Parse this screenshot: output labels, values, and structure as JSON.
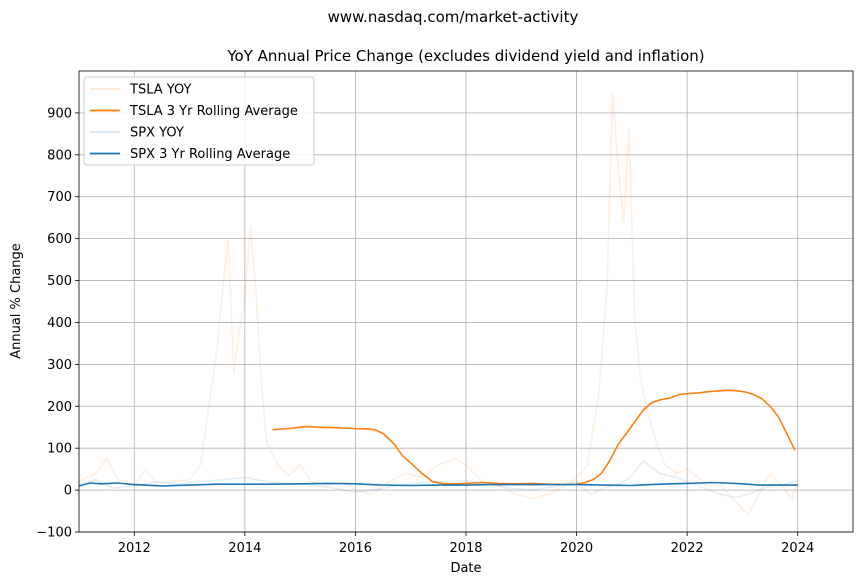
{
  "colors": {
    "tsla": "#ff7f0e",
    "spx": "#1f77b4",
    "grid": "#b0b0b0",
    "legend_border": "#cccccc"
  },
  "chart_data": {
    "type": "line",
    "suptitle": "www.nasdaq.com/market-activity",
    "title": "YoY Annual Price Change (excludes dividend yield and inflation)",
    "xlabel": "Date",
    "ylabel": "Annual % Change",
    "xlim": [
      2011.0,
      2025.0
    ],
    "ylim": [
      -100,
      1000
    ],
    "x_ticks": [
      2012,
      2014,
      2016,
      2018,
      2020,
      2022,
      2024
    ],
    "y_ticks": [
      -100,
      0,
      100,
      200,
      300,
      400,
      500,
      600,
      700,
      800,
      900
    ],
    "grid": true,
    "legend_position": "upper-left",
    "series": [
      {
        "name": "TSLA YOY",
        "color": "#ff7f0e",
        "opacity": 0.12,
        "x": [
          2011.0,
          2011.3,
          2011.5,
          2011.7,
          2012.0,
          2012.2,
          2012.4,
          2012.7,
          2013.0,
          2013.2,
          2013.35,
          2013.5,
          2013.6,
          2013.7,
          2013.8,
          2013.9,
          2014.0,
          2014.1,
          2014.2,
          2014.3,
          2014.4,
          2014.6,
          2014.8,
          2015.0,
          2015.2,
          2015.5,
          2015.8,
          2016.0,
          2016.3,
          2016.6,
          2016.9,
          2017.2,
          2017.5,
          2017.8,
          2018.0,
          2018.3,
          2018.6,
          2018.9,
          2019.2,
          2019.5,
          2019.8,
          2020.0,
          2020.2,
          2020.4,
          2020.55,
          2020.65,
          2020.75,
          2020.85,
          2020.95,
          2021.05,
          2021.15,
          2021.3,
          2021.45,
          2021.6,
          2021.8,
          2022.0,
          2022.3,
          2022.6,
          2022.9,
          2023.1,
          2023.3,
          2023.5,
          2023.7,
          2023.9,
          2024.0
        ],
        "y": [
          20,
          40,
          75,
          25,
          10,
          50,
          15,
          20,
          25,
          60,
          200,
          340,
          480,
          600,
          280,
          380,
          460,
          630,
          480,
          250,
          110,
          60,
          35,
          60,
          20,
          10,
          20,
          0,
          -10,
          20,
          40,
          30,
          60,
          75,
          60,
          20,
          10,
          -10,
          -20,
          -10,
          10,
          30,
          60,
          230,
          480,
          950,
          780,
          640,
          860,
          420,
          270,
          180,
          110,
          60,
          40,
          50,
          20,
          10,
          -30,
          -60,
          -10,
          40,
          10,
          -20,
          20
        ]
      },
      {
        "name": "TSLA 3 Yr Rolling Average",
        "color": "#ff7f0e",
        "opacity": 1,
        "x": [
          2014.5,
          2014.8,
          2015.0,
          2015.15,
          2015.3,
          2015.6,
          2015.8,
          2016.0,
          2016.2,
          2016.35,
          2016.5,
          2016.7,
          2016.85,
          2017.0,
          2017.2,
          2017.4,
          2017.6,
          2017.8,
          2018.0,
          2018.3,
          2018.6,
          2018.9,
          2019.2,
          2019.5,
          2019.8,
          2020.0,
          2020.15,
          2020.3,
          2020.45,
          2020.6,
          2020.75,
          2020.9,
          2021.05,
          2021.2,
          2021.35,
          2021.5,
          2021.7,
          2021.85,
          2022.0,
          2022.2,
          2022.4,
          2022.6,
          2022.75,
          2022.9,
          2023.05,
          2023.2,
          2023.35,
          2023.5,
          2023.65,
          2023.8,
          2023.95
        ],
        "y": [
          144,
          147,
          150,
          152,
          150,
          149,
          148,
          147,
          146,
          144,
          135,
          110,
          82,
          65,
          40,
          20,
          15,
          15,
          16,
          18,
          16,
          15,
          16,
          14,
          13,
          14,
          18,
          25,
          40,
          70,
          108,
          135,
          162,
          190,
          208,
          215,
          220,
          228,
          230,
          232,
          235,
          237,
          238,
          237,
          234,
          228,
          218,
          200,
          175,
          135,
          95
        ]
      },
      {
        "name": "SPX YOY",
        "color": "#1f77b4",
        "opacity": 0.12,
        "x": [
          2011.0,
          2011.3,
          2011.6,
          2012.0,
          2012.4,
          2012.8,
          2013.2,
          2013.6,
          2014.0,
          2014.4,
          2014.8,
          2015.2,
          2015.6,
          2016.0,
          2016.4,
          2016.8,
          2017.2,
          2017.6,
          2018.0,
          2018.4,
          2018.8,
          2019.2,
          2019.6,
          2020.0,
          2020.25,
          2020.5,
          2020.8,
          2021.0,
          2021.2,
          2021.5,
          2021.8,
          2022.0,
          2022.3,
          2022.6,
          2022.9,
          2023.2,
          2023.5,
          2023.8,
          2024.0
        ],
        "y": [
          15,
          25,
          5,
          10,
          20,
          15,
          20,
          25,
          30,
          20,
          15,
          12,
          5,
          -5,
          2,
          12,
          18,
          20,
          22,
          15,
          5,
          0,
          8,
          20,
          -10,
          5,
          15,
          35,
          70,
          40,
          30,
          20,
          5,
          -10,
          -18,
          -5,
          10,
          15,
          22
        ]
      },
      {
        "name": "SPX 3 Yr Rolling Average",
        "color": "#1f77b4",
        "opacity": 1,
        "x": [
          2011.0,
          2011.2,
          2011.4,
          2011.7,
          2012.0,
          2012.5,
          2013.0,
          2013.5,
          2014.0,
          2014.5,
          2015.0,
          2015.5,
          2016.0,
          2016.5,
          2017.0,
          2017.5,
          2018.0,
          2018.5,
          2019.0,
          2019.5,
          2020.0,
          2020.5,
          2021.0,
          2021.5,
          2022.0,
          2022.5,
          2023.0,
          2023.3,
          2023.6,
          2024.0
        ],
        "y": [
          10,
          17,
          15,
          17,
          13,
          10,
          12,
          14,
          14,
          14,
          15,
          16,
          15,
          12,
          11,
          12,
          12,
          13,
          13,
          13,
          13,
          12,
          11,
          14,
          16,
          18,
          15,
          12,
          12,
          12
        ]
      }
    ]
  }
}
